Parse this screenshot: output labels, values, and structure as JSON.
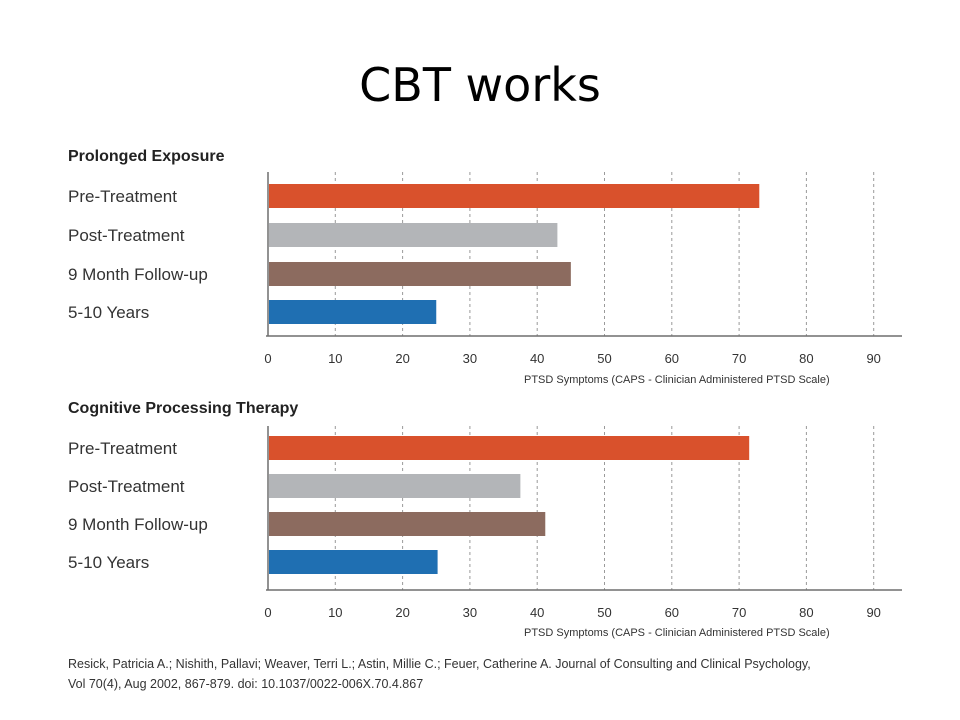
{
  "slide": {
    "title": "CBT works"
  },
  "citation": {
    "line1": "Resick, Patricia A.; Nishith, Pallavi; Weaver, Terri L.; Astin, Millie C.; Feuer, Catherine A. Journal of Consulting and Clinical Psychology,",
    "line2": "Vol 70(4), Aug 2002, 867-879. doi: 10.1037/0022-006X.70.4.867"
  },
  "chart_data": [
    {
      "type": "bar",
      "orientation": "horizontal",
      "title": "Prolonged Exposure",
      "xlabel": "PTSD Symptoms (CAPS - Clinician Administered PTSD Scale)",
      "categories": [
        "Pre-Treatment",
        "Post-Treatment",
        "9 Month Follow-up",
        "5-10 Years"
      ],
      "values": [
        73,
        43,
        45,
        25
      ],
      "colors": [
        "#d9512c",
        "#b3b5b8",
        "#8c6b5f",
        "#1f6fb2"
      ],
      "xlim": [
        0,
        95
      ],
      "xticks": [
        0,
        10,
        20,
        30,
        40,
        50,
        60,
        70,
        80,
        90
      ],
      "grid": "vertical dashed"
    },
    {
      "type": "bar",
      "orientation": "horizontal",
      "title": "Cognitive Processing Therapy",
      "xlabel": "PTSD Symptoms (CAPS - Clinician Administered PTSD Scale)",
      "categories": [
        "Pre-Treatment",
        "Post-Treatment",
        "9 Month Follow-up",
        "5-10 Years"
      ],
      "values": [
        71.5,
        37.5,
        41.2,
        25.2
      ],
      "colors": [
        "#d9512c",
        "#b3b5b8",
        "#8c6b5f",
        "#1f6fb2"
      ],
      "xlim": [
        0,
        95
      ],
      "xticks": [
        0,
        10,
        20,
        30,
        40,
        50,
        60,
        70,
        80,
        90
      ],
      "grid": "vertical dashed"
    }
  ]
}
